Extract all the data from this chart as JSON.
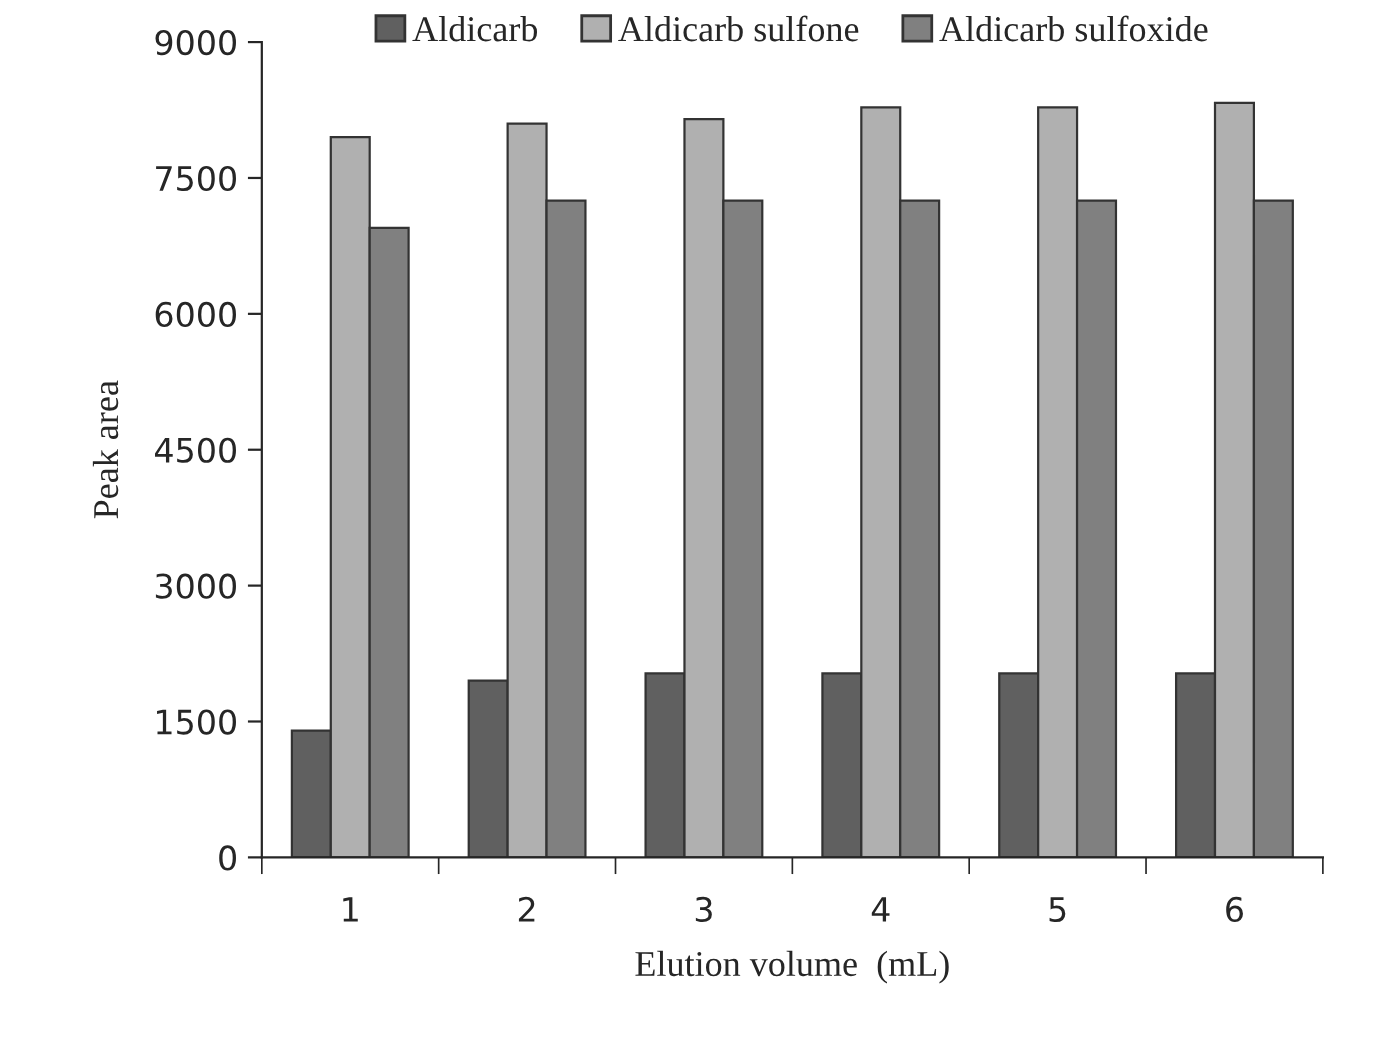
{
  "chart_data": {
    "type": "bar",
    "xlabel": "Elution volume  (mL)",
    "ylabel": "Peak area",
    "categories": [
      "1",
      "2",
      "3",
      "4",
      "5",
      "6"
    ],
    "series": [
      {
        "name": "Aldicarb",
        "color": "#606060",
        "values": [
          1400,
          1950,
          2030,
          2030,
          2030,
          2030
        ]
      },
      {
        "name": "Aldicarb sulfone",
        "color": "#b0b0b0",
        "values": [
          7950,
          8100,
          8150,
          8280,
          8280,
          8330
        ]
      },
      {
        "name": "Aldicarb sulfoxide",
        "color": "#808080",
        "values": [
          6950,
          7250,
          7250,
          7250,
          7250,
          7250
        ]
      }
    ],
    "ylim": [
      0,
      9000
    ],
    "yticks": [
      0,
      1500,
      3000,
      4500,
      6000,
      7500,
      9000
    ],
    "grid": false,
    "legend": "top"
  }
}
